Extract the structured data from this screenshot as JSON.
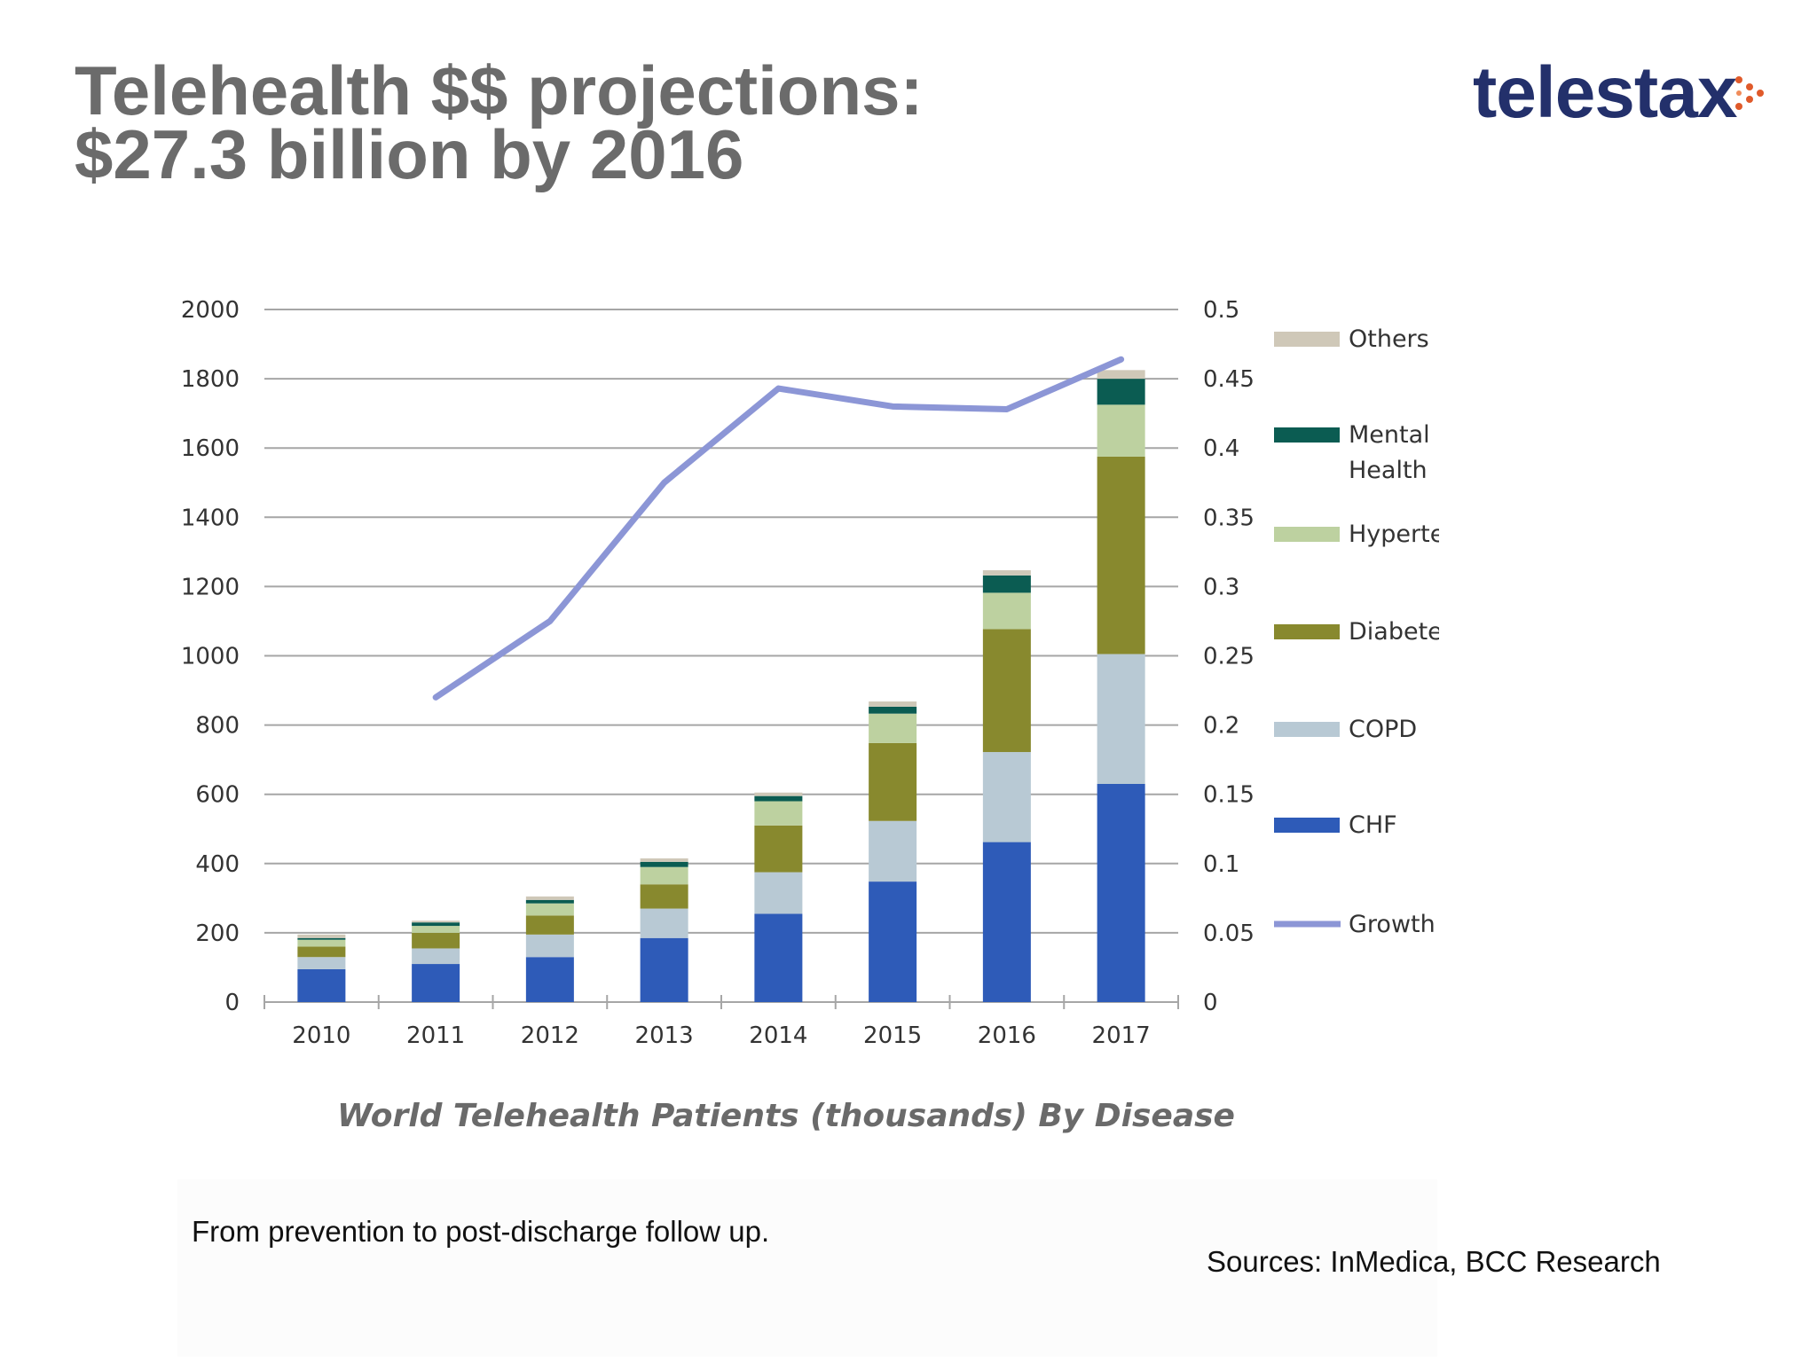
{
  "slide": {
    "title_line1": "Telehealth $$ projections:",
    "title_line2": "$27.3 billion by 2016",
    "logo_text": "telestax",
    "footnote": "From prevention to post-discharge follow up.",
    "sources": "Sources: InMedica, BCC Research"
  },
  "colors": {
    "Others": "#cfc8b8",
    "Mental Health": "#0b5c52",
    "Hypertension": "#bdd1a0",
    "Diabetes": "#88892e",
    "COPD": "#b8c9d4",
    "CHF": "#2e5bb8",
    "Growth": "#8c96d6"
  },
  "chart_data": {
    "type": "bar",
    "stacked": true,
    "title": "World Telehealth Patients (thousands) By Disease",
    "categories": [
      "2010",
      "2011",
      "2012",
      "2013",
      "2014",
      "2015",
      "2016",
      "2017"
    ],
    "y_left": {
      "min": 0,
      "max": 2000,
      "ticks": [
        "0",
        "200",
        "400",
        "600",
        "800",
        "1000",
        "1200",
        "1400",
        "1600",
        "1800",
        "2000"
      ]
    },
    "y_right": {
      "min": 0,
      "max": 0.5,
      "ticks": [
        "0",
        "0.05",
        "0.1",
        "0.15",
        "0.2",
        "0.25",
        "0.3",
        "0.35",
        "0.4",
        "0.45",
        "0.5"
      ]
    },
    "grid": true,
    "legend_position": "right",
    "series": [
      {
        "name": "CHF",
        "values": [
          95,
          110,
          130,
          185,
          255,
          348,
          462,
          630
        ]
      },
      {
        "name": "COPD",
        "values": [
          35,
          45,
          65,
          85,
          120,
          175,
          260,
          375
        ]
      },
      {
        "name": "Diabetes",
        "values": [
          30,
          45,
          55,
          70,
          135,
          225,
          355,
          570
        ]
      },
      {
        "name": "Hypertension",
        "values": [
          20,
          20,
          35,
          50,
          70,
          85,
          105,
          150
        ]
      },
      {
        "name": "Mental Health",
        "values": [
          5,
          10,
          10,
          15,
          15,
          20,
          50,
          75
        ]
      },
      {
        "name": "Others",
        "values": [
          10,
          5,
          10,
          10,
          10,
          15,
          15,
          25
        ]
      }
    ],
    "line": {
      "name": "Growth",
      "axis": "right",
      "values": [
        null,
        0.22,
        0.275,
        0.375,
        0.443,
        0.43,
        0.428,
        0.464
      ]
    },
    "legend": [
      {
        "name": "Others",
        "label": "Others"
      },
      {
        "name": "Mental Health",
        "label": "Mental Health"
      },
      {
        "name": "Hypertension",
        "label": "Hypertension"
      },
      {
        "name": "Diabetes",
        "label": "Diabetes"
      },
      {
        "name": "COPD",
        "label": "COPD"
      },
      {
        "name": "CHF",
        "label": "CHF"
      },
      {
        "name": "Growth",
        "label": "Growth"
      }
    ]
  }
}
